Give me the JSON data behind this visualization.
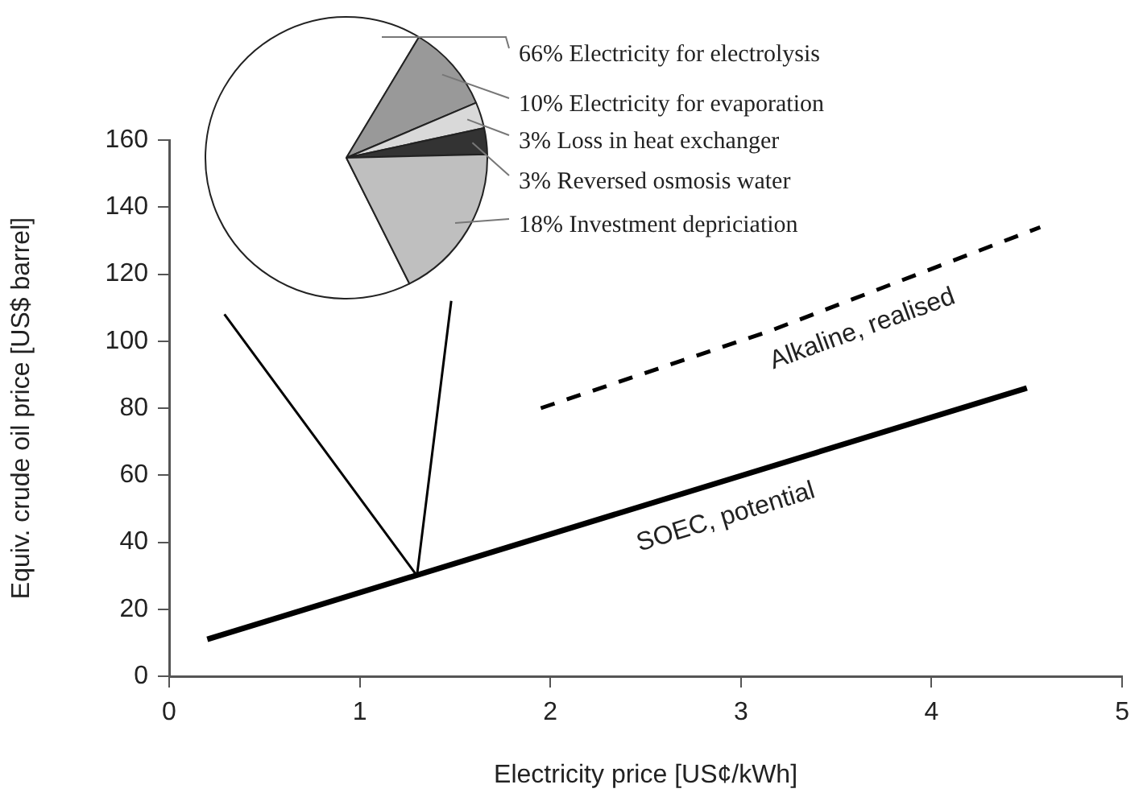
{
  "chart_data": [
    {
      "type": "line",
      "xlabel": "Electricity price [US¢/kWh]",
      "ylabel": "Equiv. crude oil price [US$ barrel]",
      "xlim": [
        0,
        5
      ],
      "xticks": [
        0,
        1,
        2,
        3,
        4,
        5
      ],
      "ylim": [
        0,
        160
      ],
      "yticks": [
        0,
        20,
        40,
        60,
        80,
        100,
        120,
        140,
        160
      ],
      "grid": false,
      "legend": false,
      "marker": "none",
      "series": [
        {
          "name": "SOEC, potential",
          "color": "#000000",
          "x": [
            0.2,
            4.5
          ],
          "values": [
            11,
            86
          ],
          "line_style": "solid"
        },
        {
          "name": "Alkaline, realised",
          "color": "#000000",
          "x": [
            1.95,
            3.15,
            4.57
          ],
          "values": [
            80,
            103,
            134
          ],
          "line_style": "dashed"
        },
        {
          "color": "#000000",
          "x": [
            0.29,
            1.3,
            1.48
          ],
          "values": [
            108,
            30,
            112
          ],
          "line_style": "solid"
        }
      ]
    },
    {
      "type": "pie",
      "categories": [
        "Electricity for electrolysis",
        "Electricity for evaporation",
        "Loss in heat exchanger",
        "Reversed osmosis water",
        "Investment depriciation"
      ],
      "values": [
        66,
        10,
        3,
        3,
        18
      ],
      "value_labels": [
        "66%",
        "10%",
        "3%",
        "3%",
        "18%"
      ],
      "colors": [
        "#ffffff",
        "#999999",
        "#d9d9d9",
        "#333333",
        "#bfbfbf"
      ],
      "legend": false
    }
  ]
}
